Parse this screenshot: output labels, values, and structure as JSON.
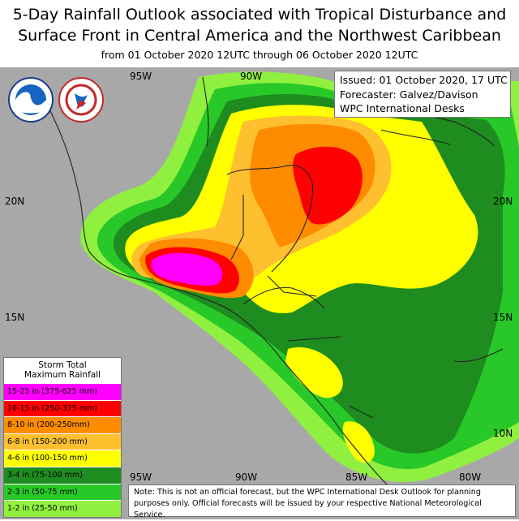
{
  "title_line1": "5-Day Rainfall Outlook associated with Tropical Disturbance and",
  "title_line2": "Surface Front in Central America and the Northwest Caribbean",
  "subtitle": "from 01 October 2020 12UTC through 06 October 2020 12UTC",
  "info": {
    "issued": "Issued: 01 October 2020, 17 UTC",
    "forecaster": "Forecaster: Galvez/Davison",
    "desk": "WPC International Desks"
  },
  "logos": {
    "noaa_icon": "noaa-logo",
    "nws_icon": "nws-logo"
  },
  "axes": {
    "top_lon": [
      "95W",
      "90W"
    ],
    "bottom_lon": [
      "95W",
      "90W",
      "85W",
      "80W"
    ],
    "left_lat": [
      "20N",
      "15N"
    ],
    "right_lat": [
      "20N",
      "15N",
      "10N"
    ]
  },
  "legend": {
    "title_line1": "Storm Total",
    "title_line2": "Maximum Rainfall",
    "items": [
      {
        "label": "15-25 in (375-625 mm)",
        "color": "#ff00ff"
      },
      {
        "label": "10-15 in (250-375 mm)",
        "color": "#ff0000"
      },
      {
        "label": "8-10 in (200-250mm)",
        "color": "#ff8c00"
      },
      {
        "label": "6-8 in (150-200 mm)",
        "color": "#ffc030"
      },
      {
        "label": "4-6 in (100-150 mm)",
        "color": "#ffff00"
      },
      {
        "label": "3-4 in (75-100 mm)",
        "color": "#1e8c1e"
      },
      {
        "label": "2-3 in (50-75 mm)",
        "color": "#28c828"
      },
      {
        "label": "1-2 in (25-50 mm)",
        "color": "#90f040"
      }
    ]
  },
  "note": "Note: This is not an official forecast, but the WPC International Desk Outlook for planning purposes only. Official forecasts will be issued by your respective National Meteorological Service.",
  "colors": {
    "land": "#a8a8a8",
    "border": "#222222"
  }
}
